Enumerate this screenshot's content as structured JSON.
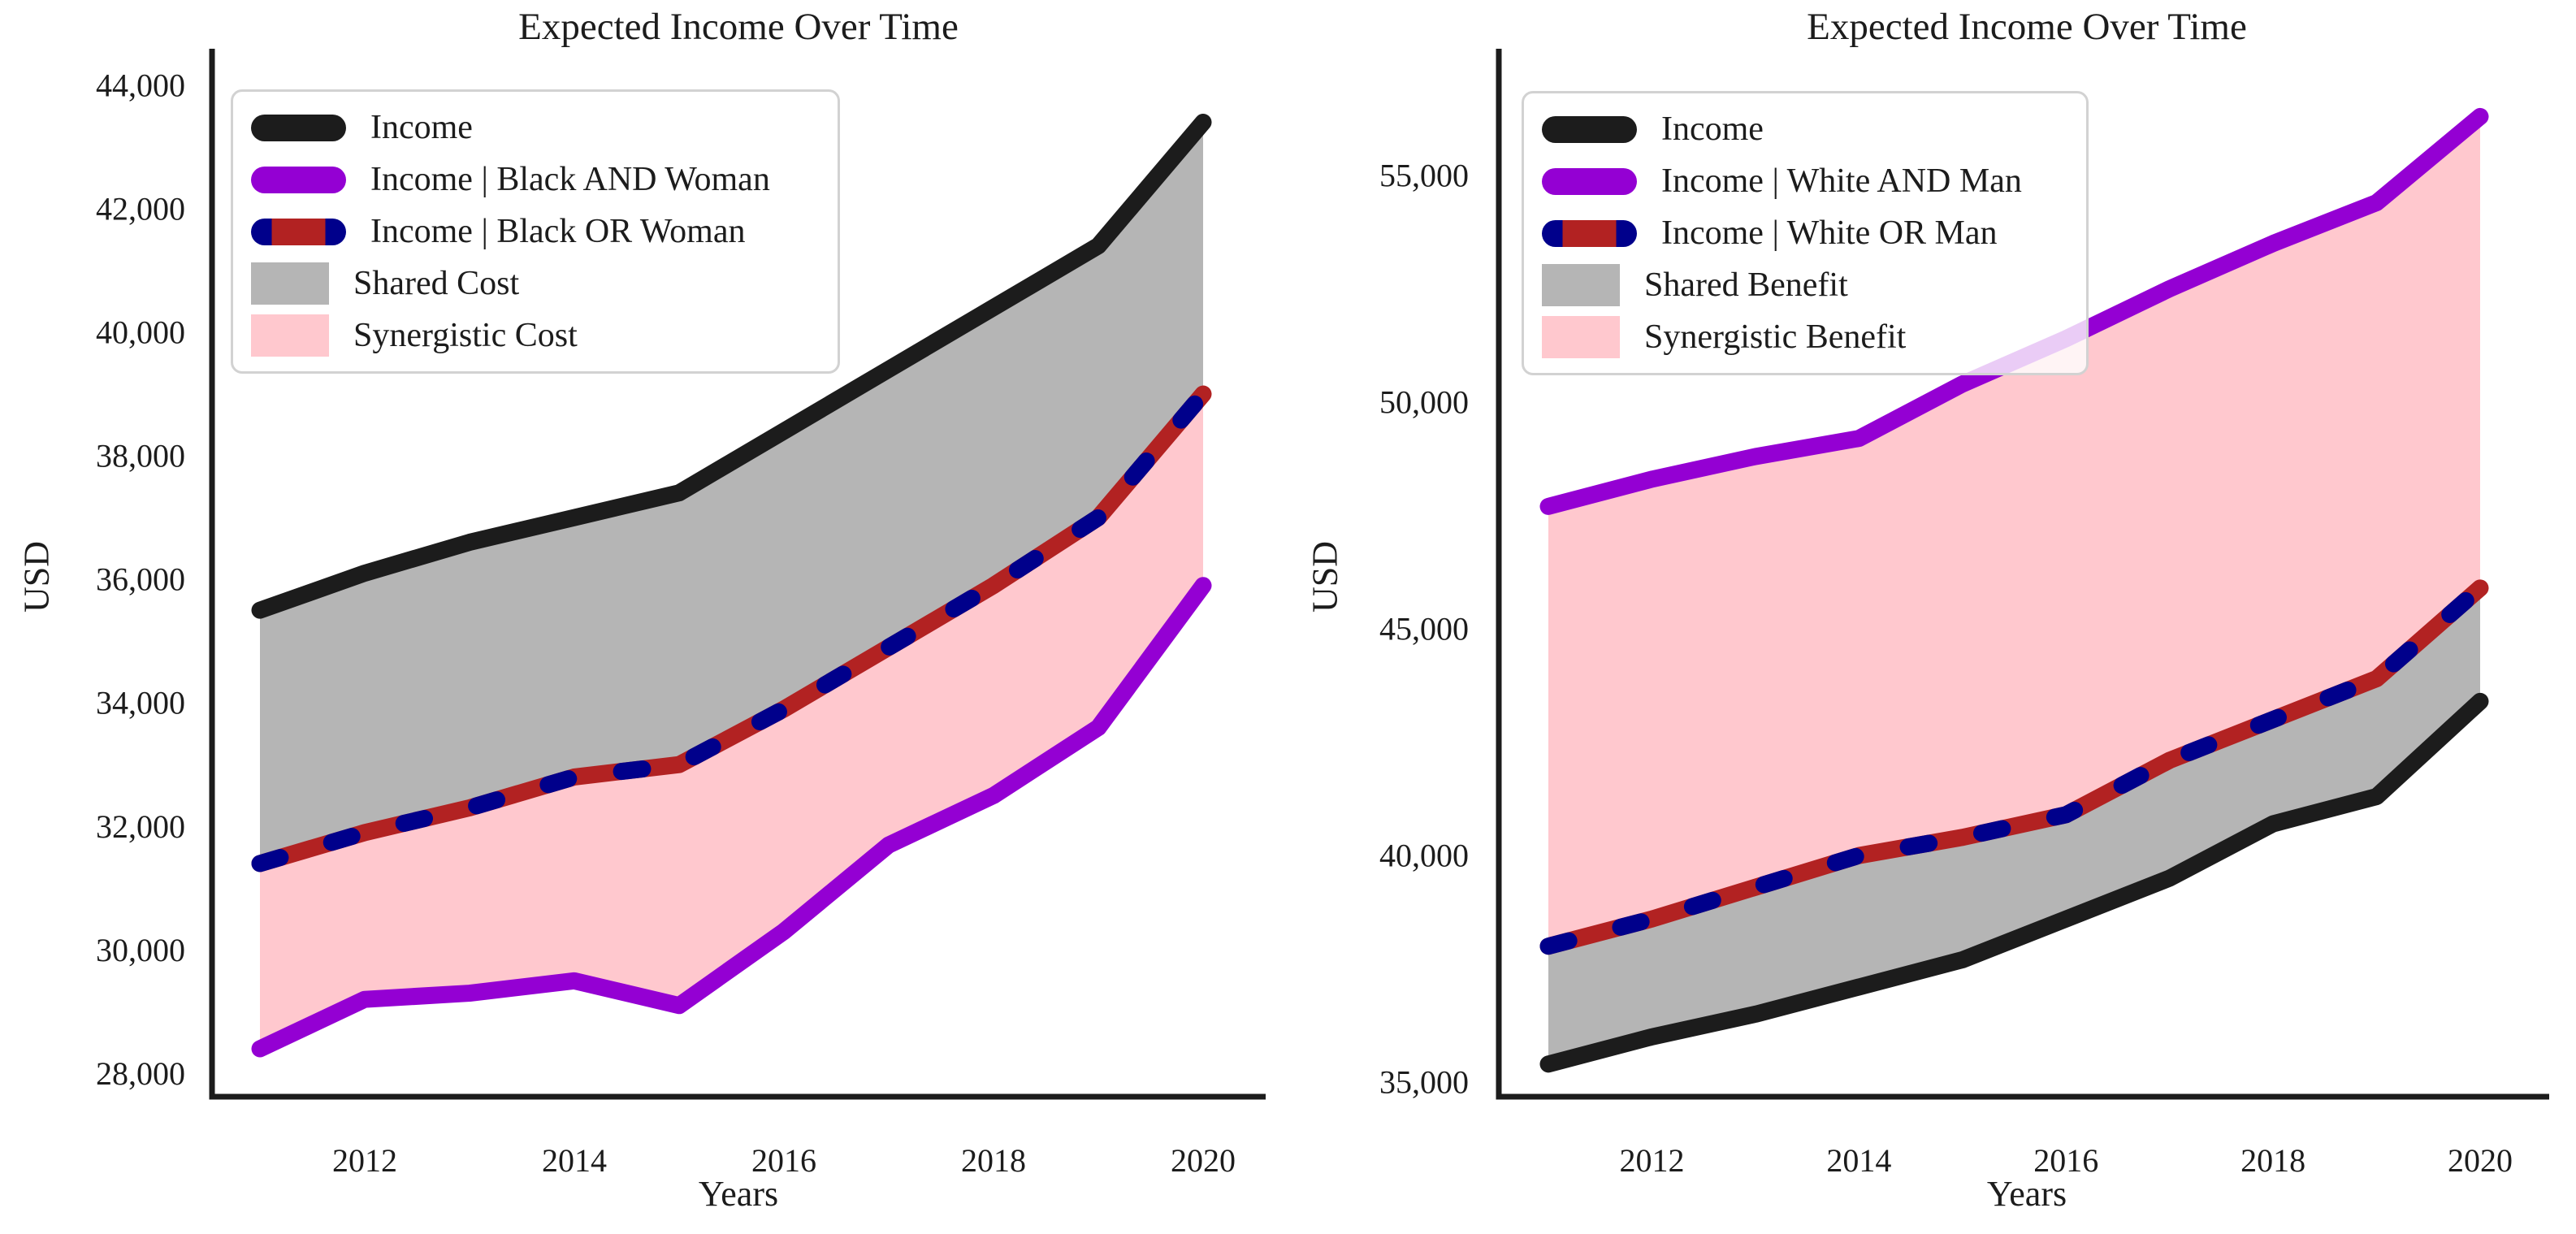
{
  "figure": {
    "background": "#ffffff",
    "text_color": "#1c1c1c"
  },
  "charts": [
    {
      "title": "Expected Income Over Time",
      "xlabel": "Years",
      "ylabel": "USD",
      "legend": [
        {
          "label": "Income",
          "marker": "line",
          "colors": [
            "#1c1c1c"
          ]
        },
        {
          "label": "Income | Black AND Woman",
          "marker": "line",
          "colors": [
            "#9400d3"
          ]
        },
        {
          "label": "Income | Black OR Woman",
          "marker": "dashed-line",
          "colors": [
            "#b22222",
            "#00008b"
          ]
        },
        {
          "label": "Shared Cost",
          "marker": "patch",
          "colors": [
            "#b5b5b5"
          ]
        },
        {
          "label": "Synergistic Cost",
          "marker": "patch",
          "colors": [
            "#ffc8ce"
          ]
        }
      ],
      "chart_data": {
        "type": "line",
        "title": "Expected Income Over Time",
        "xlabel": "Years",
        "ylabel": "USD",
        "x": [
          2011,
          2012,
          2013,
          2014,
          2015,
          2016,
          2017,
          2018,
          2019,
          2020
        ],
        "series": [
          {
            "name": "Income",
            "style": "solid",
            "color": "#1c1c1c",
            "values": [
              35500,
              36100,
              36600,
              37000,
              37400,
              38400,
              39400,
              40400,
              41400,
              43400
            ]
          },
          {
            "name": "Income | Black AND Woman",
            "style": "solid",
            "color": "#9400d3",
            "values": [
              28400,
              29200,
              29300,
              29500,
              29100,
              30300,
              31700,
              32500,
              33600,
              35900
            ]
          },
          {
            "name": "Income | Black OR Woman",
            "style": "dashed",
            "color": "#b22222",
            "color2": "#00008b",
            "values": [
              31400,
              31900,
              32300,
              32800,
              33000,
              33900,
              34900,
              35900,
              37000,
              39000
            ]
          }
        ],
        "fills": [
          {
            "name": "Shared Cost",
            "color": "#b5b5b5",
            "between": [
              0,
              2
            ]
          },
          {
            "name": "Synergistic Cost",
            "color": "#ffc8ce",
            "between": [
              2,
              1
            ]
          }
        ],
        "ylim": [
          27624,
          44590
        ],
        "yticks": [
          28000,
          30000,
          32000,
          34000,
          36000,
          38000,
          40000,
          42000,
          44000
        ],
        "xticks": [
          2012,
          2014,
          2016,
          2018,
          2020
        ],
        "grid": false,
        "legend_position": "upper left"
      }
    },
    {
      "title": "Expected Income Over Time",
      "xlabel": "Years",
      "ylabel": "USD",
      "legend": [
        {
          "label": "Income",
          "marker": "line",
          "colors": [
            "#1c1c1c"
          ]
        },
        {
          "label": "Income | White AND Man",
          "marker": "line",
          "colors": [
            "#9400d3"
          ]
        },
        {
          "label": "Income | White OR Man",
          "marker": "dashed-line",
          "colors": [
            "#b22222",
            "#00008b"
          ]
        },
        {
          "label": "Shared Benefit",
          "marker": "patch",
          "colors": [
            "#b5b5b5"
          ]
        },
        {
          "label": "Synergistic Benefit",
          "marker": "patch",
          "colors": [
            "#ffc8ce"
          ]
        }
      ],
      "chart_data": {
        "type": "line",
        "title": "Expected Income Over Time",
        "xlabel": "Years",
        "ylabel": "USD",
        "x": [
          2011,
          2012,
          2013,
          2014,
          2015,
          2016,
          2017,
          2018,
          2019,
          2020
        ],
        "series": [
          {
            "name": "Income",
            "style": "solid",
            "color": "#1c1c1c",
            "values": [
              35400,
              36000,
              36500,
              37100,
              37700,
              38600,
              39500,
              40700,
              41300,
              43400
            ]
          },
          {
            "name": "Income | White AND Man",
            "style": "solid",
            "color": "#9400d3",
            "values": [
              47700,
              48300,
              48800,
              49200,
              50400,
              51400,
              52500,
              53500,
              54400,
              56300
            ]
          },
          {
            "name": "Income | White OR Man",
            "style": "dashed",
            "color": "#b22222",
            "color2": "#00008b",
            "values": [
              38000,
              38600,
              39300,
              40000,
              40400,
              40900,
              42100,
              43000,
              43900,
              45900
            ]
          }
        ],
        "fills": [
          {
            "name": "Shared Benefit",
            "color": "#b5b5b5",
            "between": [
              0,
              2
            ]
          },
          {
            "name": "Synergistic Benefit",
            "color": "#ffc8ce",
            "between": [
              2,
              1
            ]
          }
        ],
        "ylim": [
          34680,
          57795
        ],
        "yticks": [
          35000,
          40000,
          45000,
          50000,
          55000
        ],
        "xticks": [
          2012,
          2014,
          2016,
          2018,
          2020
        ],
        "grid": false,
        "legend_position": "upper left"
      }
    }
  ]
}
